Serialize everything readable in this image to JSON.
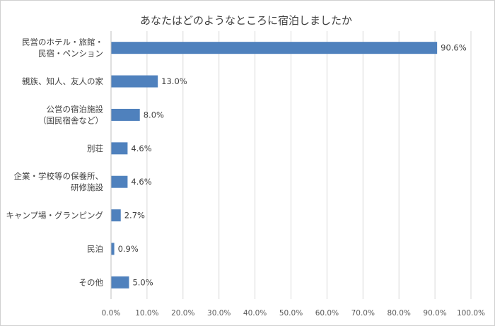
{
  "chart_data": {
    "type": "bar",
    "orientation": "horizontal",
    "title": "あなたはどのようなところに宿泊しましたか",
    "categories": [
      [
        "民営のホテル・旅館・",
        "民宿・ペンション"
      ],
      [
        "親族、知人、友人の家"
      ],
      [
        "公営の宿泊施設",
        "（国民宿舎など）"
      ],
      [
        "別荘"
      ],
      [
        "企業・学校等の保養所、",
        "研修施設"
      ],
      [
        "キャンプ場・グランピング"
      ],
      [
        "民泊"
      ],
      [
        "その他"
      ]
    ],
    "values": [
      90.6,
      13.0,
      8.0,
      4.6,
      4.6,
      2.7,
      0.9,
      5.0
    ],
    "value_labels": [
      "90.6%",
      "13.0%",
      "8.0%",
      "4.6%",
      "4.6%",
      "2.7%",
      "0.9%",
      "5.0%"
    ],
    "xlim": [
      0,
      100
    ],
    "xticks": [
      "0.0%",
      "10.0%",
      "20.0%",
      "30.0%",
      "40.0%",
      "50.0%",
      "60.0%",
      "70.0%",
      "80.0%",
      "90.0%",
      "100.0%"
    ],
    "grid": "vertical",
    "bar_color": "#4f81bd",
    "grid_color": "#d9d9d9",
    "legend": "none"
  }
}
